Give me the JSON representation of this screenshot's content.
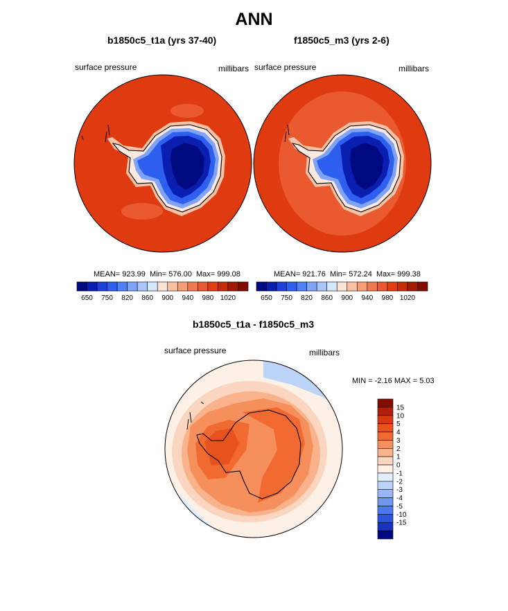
{
  "header": {
    "title": "ANN"
  },
  "panels": [
    {
      "title": "b1850c5_t1a (yrs 37-40)",
      "left_label": "surface pressure",
      "right_label": "millibars",
      "stats": {
        "mean": "MEAN= 923.99",
        "min": "Min= 576.00",
        "max": "Max= 999.08"
      }
    },
    {
      "title": "f1850c5_m3 (yrs 2-6)",
      "left_label": "surface pressure",
      "right_label": "millibars",
      "stats": {
        "mean": "MEAN= 921.76",
        "min": "Min= 572.24",
        "max": "Max= 999.38"
      }
    },
    {
      "title": "b1850c5_t1a - f1850c5_m3",
      "left_label": "surface pressure",
      "right_label": "millibars",
      "stats": {
        "min": "MIN =  -2.16",
        "max": "MAX =   5.03"
      }
    }
  ],
  "colorbar_horizontal": {
    "colors": [
      "#000a80",
      "#0a1fb0",
      "#1e3fd8",
      "#2f5fee",
      "#5080f5",
      "#7ea3f7",
      "#aac6fa",
      "#d6e6fb",
      "#fbe3d5",
      "#f9c0a4",
      "#f69e78",
      "#f07a50",
      "#ea582f",
      "#e23c12",
      "#c42d08",
      "#a21c04",
      "#800d00"
    ],
    "tick_labels": [
      "650",
      "750",
      "820",
      "860",
      "900",
      "940",
      "980",
      "1020"
    ]
  },
  "colorbar_vertical": {
    "colors": [
      "#800d00",
      "#b02008",
      "#d8380e",
      "#e8521e",
      "#f06a32",
      "#f5905c",
      "#f8b38c",
      "#fad5bf",
      "#fdf0e6",
      "#e3eefb",
      "#bcd4f7",
      "#98b8f3",
      "#7096ef",
      "#4f78eb",
      "#2d54dc",
      "#1934c0",
      "#000a80"
    ],
    "tick_labels": [
      "15",
      "10",
      "5",
      "4",
      "3",
      "2",
      "1",
      "0",
      "-1",
      "-2",
      "-3",
      "-4",
      "-5",
      "-10",
      "-15"
    ]
  },
  "chart_data": [
    {
      "type": "heatmap",
      "title": "b1850c5_t1a (yrs 37-40)",
      "variable": "surface pressure",
      "units": "millibars",
      "projection": "south polar stereographic",
      "levels": [
        650,
        700,
        750,
        780,
        820,
        840,
        860,
        880,
        900,
        920,
        940,
        960,
        980,
        1000,
        1020
      ],
      "mean": 923.99,
      "min": 576.0,
      "max": 999.08
    },
    {
      "type": "heatmap",
      "title": "f1850c5_m3 (yrs 2-6)",
      "variable": "surface pressure",
      "units": "millibars",
      "projection": "south polar stereographic",
      "levels": [
        650,
        700,
        750,
        780,
        820,
        840,
        860,
        880,
        900,
        920,
        940,
        960,
        980,
        1000,
        1020
      ],
      "mean": 921.76,
      "min": 572.24,
      "max": 999.38
    },
    {
      "type": "heatmap",
      "title": "b1850c5_t1a - f1850c5_m3",
      "variable": "surface pressure",
      "units": "millibars",
      "projection": "south polar stereographic",
      "levels": [
        -15,
        -10,
        -5,
        -4,
        -3,
        -2,
        -1,
        0,
        1,
        2,
        3,
        4,
        5,
        10,
        15
      ],
      "min": -2.16,
      "max": 5.03
    }
  ]
}
